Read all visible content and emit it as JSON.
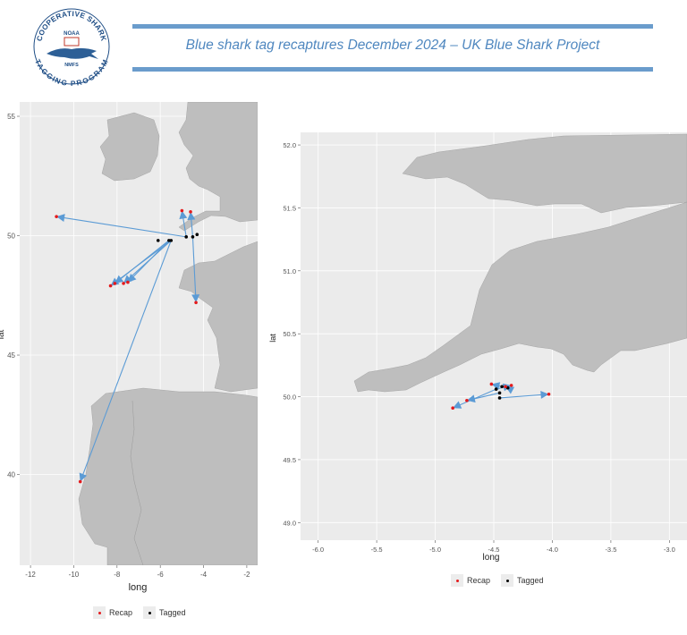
{
  "header": {
    "title": "Blue shark tag recaptures December 2024 – UK Blue Shark Project",
    "logo_text_top": "COOPERATIVE SHARK",
    "logo_text_bottom": "TAGGING PROGRAM",
    "logo_noaa": "NOAA",
    "logo_nmfs": "NMFS",
    "line_color": "#6a9ccc",
    "title_color": "#4f87bf"
  },
  "chart_data": [
    {
      "type": "scatter",
      "xlabel": "long",
      "ylabel": "lat",
      "xlim": [
        -12.5,
        -1.5
      ],
      "ylim": [
        36.2,
        55.6
      ],
      "xticks": [
        -12,
        -10,
        -8,
        -6,
        -4,
        -2
      ],
      "yticks": [
        40,
        45,
        50,
        55
      ],
      "grid": true,
      "tagged": [
        [
          -6.1,
          49.8
        ],
        [
          -5.6,
          49.8
        ],
        [
          -5.5,
          49.8
        ],
        [
          -4.8,
          49.95
        ],
        [
          -4.5,
          49.95
        ],
        [
          -4.3,
          50.05
        ]
      ],
      "recap": [
        [
          -10.8,
          50.8
        ],
        [
          -8.3,
          47.9
        ],
        [
          -8.1,
          48.0
        ],
        [
          -7.7,
          48.0
        ],
        [
          -7.5,
          48.05
        ],
        [
          -5.0,
          51.05
        ],
        [
          -4.6,
          51.0
        ],
        [
          -4.35,
          47.2
        ],
        [
          -9.7,
          39.7
        ]
      ],
      "tracks": [
        {
          "from": [
            -4.8,
            49.95
          ],
          "to": [
            -10.8,
            50.8
          ]
        },
        {
          "from": [
            -5.5,
            49.8
          ],
          "to": [
            -8.3,
            47.9
          ]
        },
        {
          "from": [
            -5.6,
            49.8
          ],
          "to": [
            -8.1,
            48.0
          ]
        },
        {
          "from": [
            -5.5,
            49.8
          ],
          "to": [
            -7.7,
            48.0
          ]
        },
        {
          "from": [
            -5.6,
            49.8
          ],
          "to": [
            -7.5,
            48.05
          ]
        },
        {
          "from": [
            -4.8,
            49.95
          ],
          "to": [
            -5.0,
            51.05
          ]
        },
        {
          "from": [
            -4.5,
            49.95
          ],
          "to": [
            -4.6,
            51.0
          ]
        },
        {
          "from": [
            -4.5,
            49.95
          ],
          "to": [
            -4.35,
            47.2
          ]
        },
        {
          "from": [
            -5.5,
            49.8
          ],
          "to": [
            -9.7,
            39.7
          ]
        }
      ],
      "legend": [
        {
          "label": "Recap",
          "color": "#e41a1c"
        },
        {
          "label": "Tagged",
          "color": "#000000"
        }
      ],
      "colors": {
        "land": "#bebebe",
        "sea": "#ebebeb",
        "arrow": "#5b9bd5"
      }
    },
    {
      "type": "scatter",
      "xlabel": "long",
      "ylabel": "lat",
      "xlim": [
        -6.15,
        -2.85
      ],
      "ylim": [
        48.86,
        52.1
      ],
      "xticks": [
        -6.0,
        -5.5,
        -5.0,
        -4.5,
        -4.0,
        -3.5,
        -3.0
      ],
      "yticks": [
        49.0,
        49.5,
        50.0,
        50.5,
        51.0,
        51.5,
        52.0
      ],
      "grid": true,
      "tagged": [
        [
          -4.48,
          50.06
        ],
        [
          -4.45,
          50.03
        ],
        [
          -4.43,
          50.08
        ],
        [
          -4.38,
          50.07
        ],
        [
          -4.45,
          49.99
        ]
      ],
      "recap": [
        [
          -4.85,
          49.91
        ],
        [
          -4.73,
          49.97
        ],
        [
          -4.52,
          50.1
        ],
        [
          -4.4,
          50.08
        ],
        [
          -4.35,
          50.09
        ],
        [
          -4.03,
          50.02
        ]
      ],
      "tracks": [
        {
          "from": [
            -4.48,
            50.06
          ],
          "to": [
            -4.85,
            49.91
          ]
        },
        {
          "from": [
            -4.45,
            50.03
          ],
          "to": [
            -4.73,
            49.97
          ]
        },
        {
          "from": [
            -4.43,
            50.08
          ],
          "to": [
            -4.52,
            50.1
          ]
        },
        {
          "from": [
            -4.48,
            50.06
          ],
          "to": [
            -4.35,
            50.09
          ]
        },
        {
          "from": [
            -4.38,
            50.07
          ],
          "to": [
            -4.4,
            50.08
          ]
        },
        {
          "from": [
            -4.45,
            49.99
          ],
          "to": [
            -4.03,
            50.02
          ]
        }
      ],
      "legend": [
        {
          "label": "Recap",
          "color": "#e41a1c"
        },
        {
          "label": "Tagged",
          "color": "#000000"
        }
      ],
      "colors": {
        "land": "#bebebe",
        "sea": "#ebebeb",
        "arrow": "#5b9bd5"
      }
    }
  ]
}
